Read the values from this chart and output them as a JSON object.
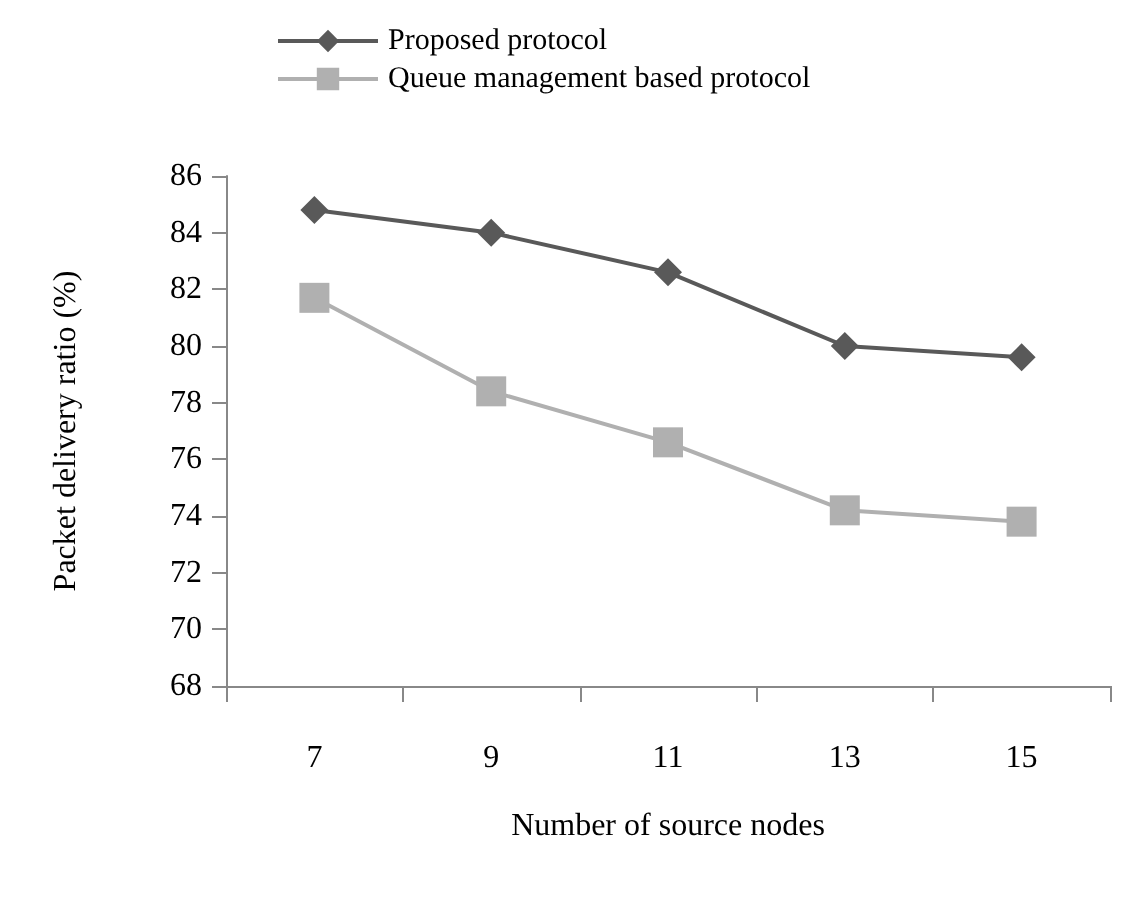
{
  "chart_data": {
    "type": "line",
    "xlabel": "Number of source nodes",
    "ylabel": "Packet delivery ratio (%)",
    "categories": [
      "7",
      "9",
      "11",
      "13",
      "15"
    ],
    "series": [
      {
        "name": "Proposed protocol",
        "color": "#595959",
        "marker": "diamond",
        "values": [
          84.8,
          84.0,
          82.6,
          80.0,
          79.6
        ]
      },
      {
        "name": "Queue management based protocol",
        "color": "#b0b0b0",
        "marker": "square",
        "values": [
          81.7,
          78.4,
          76.6,
          74.2,
          73.8
        ]
      }
    ],
    "ylim": [
      68,
      86
    ],
    "yticks": [
      68,
      70,
      72,
      74,
      76,
      78,
      80,
      82,
      84,
      86
    ],
    "grid": false,
    "legend": "top left"
  }
}
